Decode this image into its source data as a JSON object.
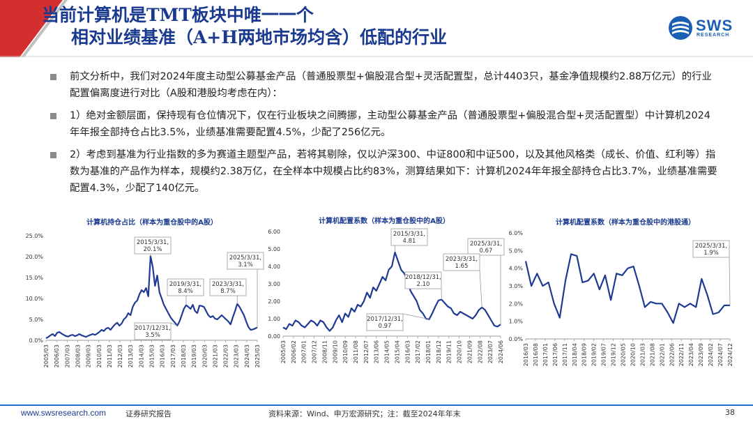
{
  "header": {
    "title_line1": "当前计算机是TMT板块中唯一一个",
    "title_line2": "相对业绩基准（A+H两地市场均含）低配的行业",
    "logo_text": "SWS",
    "logo_sub": "RESEARCH"
  },
  "bullets": [
    "前文分析中，我们对2024年度主动型公募基金产品（普通股票型+偏股混合型+灵活配置型，总计4403只，基金净值规模约2.88万亿元）的行业配置偏离度进行对比（A股和港股均考虑在内）：",
    "1）绝对金额层面，保持现有仓位情况下，仅在行业板块之间腾挪，主动型公募基金产品（普通股票型+偏股混合型+灵活配置型）中计算机2024年年报全部持仓占比3.5%，业绩基准需要配置4.5%，少配了256亿元。",
    "2）考虑到基准为行业指数的多为赛道主题型产品，若将其剔除，仅以沪深300、中证800和中证500，以及其他风格类（成长、价值、红利等）指数为基准的产品作为样本，规模约2.38万亿，在全样本中规模占比约83%，测算结果如下：计算机2024年年报全部持仓占比3.7%，业绩基准需要配置4.3%，少配了140亿元。"
  ],
  "chart_data": [
    {
      "type": "line",
      "title": "计算机持仓占比（样本为重仓股中的A股）",
      "color": "#1f3a93",
      "ylim": [
        0,
        25
      ],
      "yticks": [
        "0.0%",
        "5.0%",
        "10.0%",
        "15.0%",
        "20.0%",
        "25.0%"
      ],
      "xticks": [
        "2005/03",
        "2006/03",
        "2007/03",
        "2008/03",
        "2009/03",
        "2010/03",
        "2011/03",
        "2012/03",
        "2013/03",
        "2014/03",
        "2015/03",
        "2016/03",
        "2017/03",
        "2018/03",
        "2019/03",
        "2020/03",
        "2021/03",
        "2022/03",
        "2023/03",
        "2024/03",
        "2025/03"
      ],
      "values": [
        0.5,
        0.8,
        1.2,
        1.5,
        1.0,
        1.8,
        2.0,
        1.6,
        1.3,
        1.0,
        0.9,
        1.2,
        1.3,
        1.0,
        1.2,
        1.5,
        1.2,
        1.0,
        0.8,
        1.1,
        1.3,
        1.5,
        1.3,
        1.6,
        2.0,
        2.5,
        2.2,
        2.8,
        3.0,
        2.5,
        3.2,
        3.8,
        4.2,
        3.5,
        4.0,
        5.0,
        5.5,
        6.5,
        6.0,
        8.0,
        9.0,
        9.5,
        11.0,
        12.0,
        11.5,
        12.5,
        10.5,
        20.1,
        17.5,
        13.0,
        15.5,
        11.5,
        10.0,
        8.5,
        7.5,
        6.5,
        5.5,
        4.8,
        4.2,
        3.5,
        4.5,
        6.0,
        7.5,
        8.4,
        8.0,
        7.5,
        8.5,
        7.0,
        6.5,
        8.3,
        8.2,
        8.0,
        7.0,
        6.0,
        5.5,
        5.8,
        5.2,
        5.0,
        5.5,
        6.0,
        5.5,
        5.0,
        4.5,
        3.8,
        5.5,
        7.0,
        8.7,
        8.0,
        7.0,
        6.0,
        4.5,
        3.2,
        2.5,
        2.6,
        2.8,
        3.1
      ],
      "annotations": [
        {
          "text": [
            "2015/3/31,",
            "20.1%"
          ]
        },
        {
          "text": [
            "2019/3/31,",
            "8.4%"
          ]
        },
        {
          "text": [
            "2023/3/31,",
            "8.7%"
          ]
        },
        {
          "text": [
            "2025/3/31,",
            "3.1%"
          ]
        },
        {
          "text": [
            "2017/12/31,",
            "3.5%"
          ]
        }
      ]
    },
    {
      "type": "line",
      "title": "计算机配置系数（样本为重仓股中的A股）",
      "color": "#1f3a93",
      "ylim": [
        0,
        6
      ],
      "yticks": [
        "0.00",
        "1.00",
        "2.00",
        "3.00",
        "4.00",
        "5.00",
        "6.00"
      ],
      "xticks": [
        "2005/03",
        "2006/02",
        "2007/01",
        "2007/12",
        "2008/11",
        "2009/10",
        "2010/09",
        "2011/08",
        "2012/07",
        "2013/06",
        "2014/05",
        "2015/04",
        "2016/03",
        "2017/02",
        "2018/01",
        "2018/12",
        "2019/11",
        "2020/10",
        "2021/09",
        "2022/08",
        "2023/07",
        "2024/06"
      ],
      "values": [
        0.5,
        0.4,
        0.7,
        0.6,
        0.9,
        0.8,
        0.6,
        0.5,
        0.7,
        0.9,
        0.8,
        0.6,
        0.9,
        0.8,
        0.5,
        0.3,
        0.5,
        0.9,
        1.2,
        0.8,
        1.3,
        1.1,
        1.6,
        1.4,
        1.8,
        1.7,
        2.0,
        2.5,
        2.2,
        2.8,
        2.6,
        3.0,
        3.4,
        3.2,
        3.8,
        4.0,
        4.81,
        4.3,
        3.8,
        3.6,
        3.2,
        2.6,
        2.3,
        2.0,
        1.5,
        1.3,
        1.0,
        0.97,
        1.3,
        1.7,
        2.05,
        2.1,
        1.9,
        1.7,
        1.6,
        1.3,
        1.2,
        1.4,
        1.3,
        1.2,
        1.1,
        1.0,
        1.2,
        1.5,
        1.65,
        1.5,
        1.2,
        0.9,
        0.6,
        0.55,
        0.67
      ],
      "annotations": [
        {
          "text": [
            "2015/3/31,",
            "4.81"
          ]
        },
        {
          "text": [
            "2025/3/31,",
            "0.67"
          ]
        },
        {
          "text": [
            "2023/3/31,",
            "1.65"
          ]
        },
        {
          "text": [
            "2018/12/31,",
            "2.10"
          ]
        },
        {
          "text": [
            "2017/12/31,",
            "0.97"
          ]
        }
      ]
    },
    {
      "type": "line",
      "title": "计算机配置系数（样本为重仓股中的港股通）",
      "color": "#1f3a93",
      "ylim": [
        0,
        6
      ],
      "yticks": [
        "0.0%",
        "1.0%",
        "2.0%",
        "3.0%",
        "4.0%",
        "5.0%",
        "6.0%"
      ],
      "xticks": [
        "2016/03",
        "2016/08",
        "2017/01",
        "2017/06",
        "2017/11",
        "2018/04",
        "2018/09",
        "2019/02",
        "2019/07",
        "2019/12",
        "2020/05",
        "2020/10",
        "2021/03",
        "2021/08",
        "2022/01",
        "2022/06",
        "2022/11",
        "2023/04",
        "2023/09",
        "2024/02",
        "2024/07",
        "2024/12"
      ],
      "values": [
        4.4,
        3.0,
        3.7,
        3.0,
        3.2,
        2.0,
        1.2,
        3.3,
        4.8,
        4.7,
        3.2,
        3.3,
        3.7,
        2.8,
        3.6,
        2.2,
        3.7,
        3.6,
        4.0,
        4.1,
        3.0,
        1.8,
        2.1,
        2.0,
        2.0,
        1.5,
        0.9,
        2.0,
        1.8,
        2.0,
        1.8,
        3.4,
        2.5,
        1.4,
        1.5,
        1.9,
        1.9
      ],
      "annotations": [
        {
          "text": [
            "2025/3/31,",
            "1.9%"
          ]
        }
      ]
    }
  ],
  "footer": {
    "url": "www.swsresearch.com",
    "report": "证券研究报告",
    "source": "资料来源：Wind、申万宏源研究；注：截至2024年年末",
    "page": "38"
  }
}
